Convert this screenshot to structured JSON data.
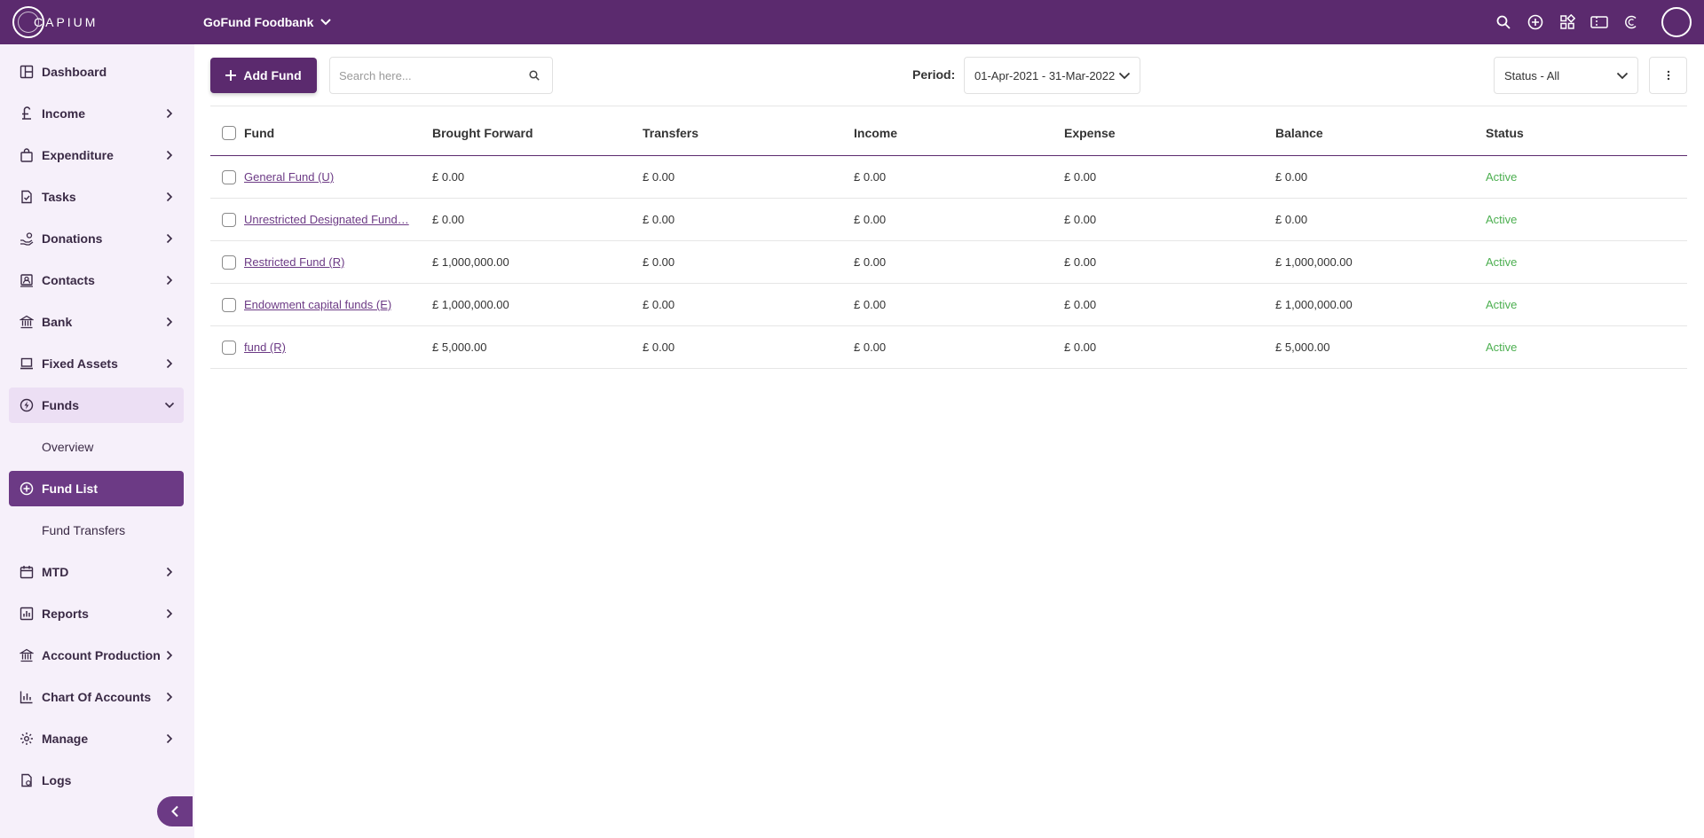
{
  "app": {
    "logo_text": "CAPIUM",
    "org_name": "GoFund Foodbank"
  },
  "topbar": {
    "icons": [
      "search-icon",
      "add-circle-icon",
      "apps-grid-icon",
      "ticket-icon",
      "capium-c-icon",
      "user-avatar"
    ]
  },
  "sidebar": {
    "items": [
      {
        "label": "Dashboard",
        "icon": "dashboard-icon"
      },
      {
        "label": "Income",
        "icon": "pound-icon"
      },
      {
        "label": "Expenditure",
        "icon": "bag-icon"
      },
      {
        "label": "Tasks",
        "icon": "task-icon"
      },
      {
        "label": "Donations",
        "icon": "donation-icon"
      },
      {
        "label": "Contacts",
        "icon": "contacts-icon"
      },
      {
        "label": "Bank",
        "icon": "bank-icon"
      },
      {
        "label": "Fixed Assets",
        "icon": "laptop-icon"
      },
      {
        "label": "Funds",
        "icon": "funds-icon"
      },
      {
        "label": "Overview"
      },
      {
        "label": "Fund List",
        "icon": "add-circle-icon"
      },
      {
        "label": "Fund Transfers"
      },
      {
        "label": "MTD",
        "icon": "calendar-icon"
      },
      {
        "label": "Reports",
        "icon": "reports-icon"
      },
      {
        "label": "Account Production",
        "icon": "bank-icon"
      },
      {
        "label": "Chart Of Accounts",
        "icon": "chart-icon"
      },
      {
        "label": "Manage",
        "icon": "gear-icon"
      },
      {
        "label": "Logs",
        "icon": "logs-icon"
      }
    ]
  },
  "toolbar": {
    "add_label": "Add Fund",
    "search_placeholder": "Search here...",
    "period_label": "Period:",
    "period_value": "01-Apr-2021 - 31-Mar-2022",
    "status_value": "Status - All"
  },
  "table": {
    "headers": {
      "fund": "Fund",
      "brought_forward": "Brought Forward",
      "transfers": "Transfers",
      "income": "Income",
      "expense": "Expense",
      "balance": "Balance",
      "status": "Status"
    },
    "rows": [
      {
        "fund": "General Fund (U)",
        "brought_forward": "£ 0.00",
        "transfers": "£ 0.00",
        "income": "£ 0.00",
        "expense": "£ 0.00",
        "balance": "£ 0.00",
        "status": "Active"
      },
      {
        "fund": "Unrestricted Designated Fund…",
        "brought_forward": "£ 0.00",
        "transfers": "£ 0.00",
        "income": "£ 0.00",
        "expense": "£ 0.00",
        "balance": "£ 0.00",
        "status": "Active"
      },
      {
        "fund": "Restricted Fund (R)",
        "brought_forward": "£ 1,000,000.00",
        "transfers": "£ 0.00",
        "income": "£ 0.00",
        "expense": "£ 0.00",
        "balance": "£ 1,000,000.00",
        "status": "Active"
      },
      {
        "fund": "Endowment capital funds (E)",
        "brought_forward": "£ 1,000,000.00",
        "transfers": "£ 0.00",
        "income": "£ 0.00",
        "expense": "£ 0.00",
        "balance": "£ 1,000,000.00",
        "status": "Active"
      },
      {
        "fund": "fund (R)",
        "brought_forward": "£ 5,000.00",
        "transfers": "£ 0.00",
        "income": "£ 0.00",
        "expense": "£ 0.00",
        "balance": "£ 5,000.00",
        "status": "Active"
      }
    ]
  },
  "colors": {
    "brand": "#5b2a6e",
    "active_nav": "#6c3a85",
    "sidebar_bg": "#f6f0fa",
    "status_active": "#4caf50"
  }
}
